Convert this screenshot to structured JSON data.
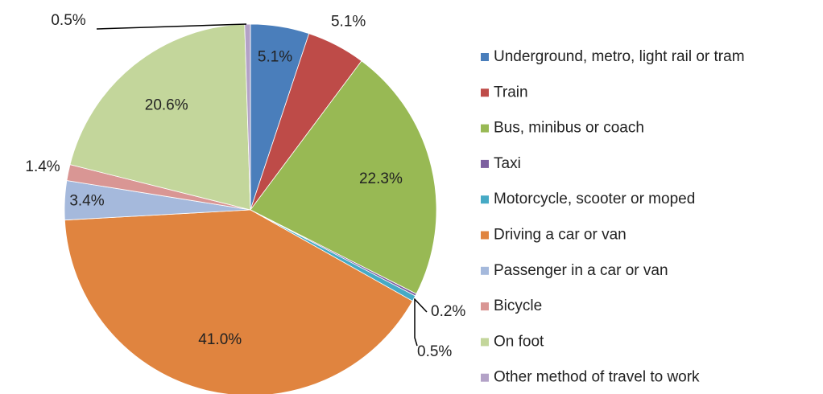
{
  "chart_data": {
    "type": "pie",
    "categories": [
      "Underground, metro, light rail or tram",
      "Train",
      "Bus, minibus or coach",
      "Taxi",
      "Motorcycle, scooter or moped",
      "Driving a car or van",
      "Passenger in a car or van",
      "Bicycle",
      "On foot",
      "Other method of travel to work"
    ],
    "values": [
      5.1,
      5.1,
      22.3,
      0.2,
      0.5,
      41.0,
      3.4,
      1.4,
      20.6,
      0.5
    ],
    "value_labels": [
      "5.1%",
      "5.1%",
      "22.3%",
      "0.2%",
      "0.5%",
      "41.0%",
      "3.4%",
      "1.4%",
      "20.6%",
      "0.5%"
    ],
    "colors": [
      "#4a7ebb",
      "#be4b48",
      "#98b954",
      "#7d60a0",
      "#46aac5",
      "#e0843f",
      "#a5b9dc",
      "#d99694",
      "#c3d69b",
      "#b3a2c7"
    ],
    "legend": "right"
  }
}
